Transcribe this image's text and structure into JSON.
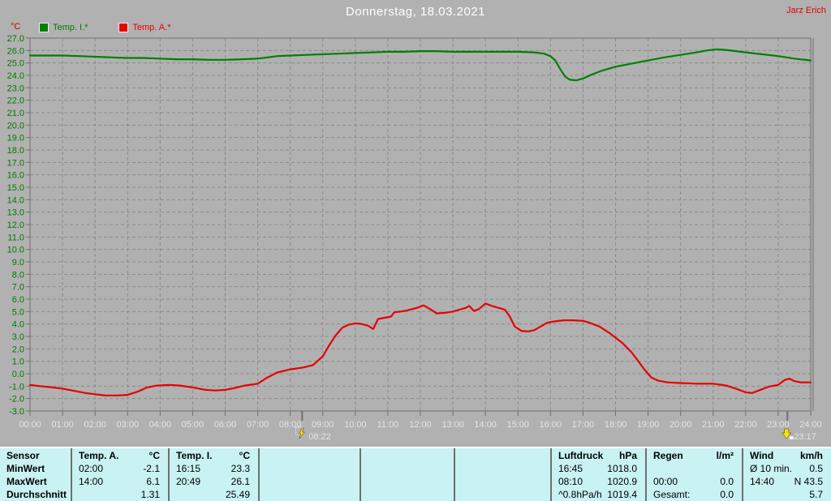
{
  "header": {
    "title": "Donnerstag, 18.03.2021",
    "author": "Jarz Erich"
  },
  "colors": {
    "background": "#b1b1b1",
    "plot_border": "#6f6f6f",
    "grid": "#8b8b8b",
    "y_label": "#007a00",
    "x_label": "#e4e4e4",
    "title": "#ffffff",
    "author": "#e60000",
    "unit": "#cc0000",
    "table_bg": "#c9f2f2",
    "marker_yellow": "#ffe000",
    "temp_i_green": "#008000",
    "temp_a_red": "#e60000"
  },
  "chart_data": {
    "type": "line",
    "title": "Donnerstag, 18.03.2021",
    "xlabel": "",
    "ylabel": "°C",
    "ylim": [
      -3,
      27
    ],
    "ytick_step": 1,
    "xlim": [
      0,
      24
    ],
    "grid": true,
    "legend_position": "top-left",
    "xtick_labels": [
      "00:00",
      "01:00",
      "02:00",
      "03:00",
      "04:00",
      "05:00",
      "06:00",
      "07:00",
      "08:00",
      "09:00",
      "10:00",
      "11:00",
      "12:00",
      "13:00",
      "14:00",
      "15:00",
      "16:00",
      "17:00",
      "18:00",
      "19:00",
      "20:00",
      "21:00",
      "22:00",
      "23:00",
      "24:00"
    ],
    "series": [
      {
        "name": "Temp. I.*",
        "color": "#008000",
        "points": [
          [
            0,
            25.6
          ],
          [
            1,
            25.6
          ],
          [
            1.5,
            25.55
          ],
          [
            2,
            25.5
          ],
          [
            2.5,
            25.45
          ],
          [
            3,
            25.4
          ],
          [
            3.5,
            25.4
          ],
          [
            4,
            25.35
          ],
          [
            4.5,
            25.3
          ],
          [
            5,
            25.3
          ],
          [
            5.5,
            25.25
          ],
          [
            6,
            25.25
          ],
          [
            6.5,
            25.3
          ],
          [
            7,
            25.35
          ],
          [
            7.3,
            25.45
          ],
          [
            7.6,
            25.55
          ],
          [
            8,
            25.6
          ],
          [
            8.5,
            25.65
          ],
          [
            9,
            25.7
          ],
          [
            9.5,
            25.75
          ],
          [
            10,
            25.8
          ],
          [
            10.5,
            25.85
          ],
          [
            11,
            25.9
          ],
          [
            11.5,
            25.9
          ],
          [
            12,
            25.95
          ],
          [
            12.5,
            25.95
          ],
          [
            13,
            25.9
          ],
          [
            13.5,
            25.9
          ],
          [
            14,
            25.9
          ],
          [
            14.5,
            25.9
          ],
          [
            15,
            25.9
          ],
          [
            15.5,
            25.85
          ],
          [
            15.8,
            25.75
          ],
          [
            16,
            25.55
          ],
          [
            16.15,
            25.2
          ],
          [
            16.3,
            24.5
          ],
          [
            16.45,
            23.9
          ],
          [
            16.6,
            23.65
          ],
          [
            16.8,
            23.6
          ],
          [
            17,
            23.75
          ],
          [
            17.3,
            24.1
          ],
          [
            17.6,
            24.4
          ],
          [
            18,
            24.7
          ],
          [
            18.5,
            24.95
          ],
          [
            19,
            25.2
          ],
          [
            19.5,
            25.45
          ],
          [
            20,
            25.65
          ],
          [
            20.5,
            25.85
          ],
          [
            20.8,
            26.0
          ],
          [
            21.1,
            26.1
          ],
          [
            21.4,
            26.05
          ],
          [
            21.7,
            25.95
          ],
          [
            22,
            25.85
          ],
          [
            22.5,
            25.7
          ],
          [
            23,
            25.55
          ],
          [
            23.5,
            25.35
          ],
          [
            24,
            25.2
          ]
        ]
      },
      {
        "name": "Temp. A.*",
        "color": "#e60000",
        "points": [
          [
            0,
            -0.9
          ],
          [
            0.3,
            -1.0
          ],
          [
            0.7,
            -1.1
          ],
          [
            1,
            -1.2
          ],
          [
            1.3,
            -1.35
          ],
          [
            1.7,
            -1.55
          ],
          [
            2,
            -1.65
          ],
          [
            2.3,
            -1.75
          ],
          [
            2.7,
            -1.75
          ],
          [
            3,
            -1.7
          ],
          [
            3.3,
            -1.45
          ],
          [
            3.6,
            -1.1
          ],
          [
            3.9,
            -0.95
          ],
          [
            4.3,
            -0.9
          ],
          [
            4.6,
            -0.95
          ],
          [
            5,
            -1.1
          ],
          [
            5.4,
            -1.3
          ],
          [
            5.7,
            -1.35
          ],
          [
            6,
            -1.3
          ],
          [
            6.3,
            -1.15
          ],
          [
            6.6,
            -0.95
          ],
          [
            7,
            -0.8
          ],
          [
            7.3,
            -0.3
          ],
          [
            7.6,
            0.1
          ],
          [
            8,
            0.35
          ],
          [
            8.4,
            0.5
          ],
          [
            8.7,
            0.7
          ],
          [
            9,
            1.4
          ],
          [
            9.2,
            2.3
          ],
          [
            9.4,
            3.1
          ],
          [
            9.6,
            3.7
          ],
          [
            9.8,
            3.95
          ],
          [
            10,
            4.05
          ],
          [
            10.2,
            4.0
          ],
          [
            10.4,
            3.85
          ],
          [
            10.55,
            3.6
          ],
          [
            10.7,
            4.4
          ],
          [
            10.9,
            4.5
          ],
          [
            11.1,
            4.6
          ],
          [
            11.2,
            4.95
          ],
          [
            11.4,
            5.0
          ],
          [
            11.6,
            5.1
          ],
          [
            11.9,
            5.3
          ],
          [
            12.1,
            5.5
          ],
          [
            12.3,
            5.2
          ],
          [
            12.5,
            4.85
          ],
          [
            12.75,
            4.9
          ],
          [
            13,
            5.0
          ],
          [
            13.2,
            5.15
          ],
          [
            13.4,
            5.3
          ],
          [
            13.5,
            5.45
          ],
          [
            13.65,
            5.05
          ],
          [
            13.8,
            5.2
          ],
          [
            14,
            5.65
          ],
          [
            14.2,
            5.45
          ],
          [
            14.4,
            5.3
          ],
          [
            14.6,
            5.15
          ],
          [
            14.75,
            4.6
          ],
          [
            14.9,
            3.8
          ],
          [
            15.1,
            3.45
          ],
          [
            15.3,
            3.4
          ],
          [
            15.5,
            3.5
          ],
          [
            15.7,
            3.8
          ],
          [
            15.9,
            4.1
          ],
          [
            16.1,
            4.2
          ],
          [
            16.4,
            4.3
          ],
          [
            16.7,
            4.3
          ],
          [
            17,
            4.25
          ],
          [
            17.2,
            4.1
          ],
          [
            17.5,
            3.8
          ],
          [
            17.8,
            3.3
          ],
          [
            18,
            2.9
          ],
          [
            18.2,
            2.5
          ],
          [
            18.5,
            1.7
          ],
          [
            18.7,
            1.0
          ],
          [
            18.9,
            0.3
          ],
          [
            19.1,
            -0.3
          ],
          [
            19.3,
            -0.55
          ],
          [
            19.6,
            -0.7
          ],
          [
            20,
            -0.75
          ],
          [
            20.5,
            -0.8
          ],
          [
            21,
            -0.8
          ],
          [
            21.4,
            -0.95
          ],
          [
            21.7,
            -1.2
          ],
          [
            22,
            -1.5
          ],
          [
            22.2,
            -1.55
          ],
          [
            22.4,
            -1.35
          ],
          [
            22.7,
            -1.05
          ],
          [
            23,
            -0.9
          ],
          [
            23.2,
            -0.5
          ],
          [
            23.35,
            -0.4
          ],
          [
            23.5,
            -0.6
          ],
          [
            23.7,
            -0.7
          ],
          [
            24,
            -0.7
          ]
        ]
      }
    ],
    "markers": [
      {
        "label": "08:22",
        "hour": 8.3667,
        "direction": "up"
      },
      {
        "label": "23:17",
        "hour": 23.2833,
        "direction": "down"
      }
    ]
  },
  "stats_table": {
    "corner_header": "Sensor",
    "row_labels": [
      "MinWert",
      "MaxWert",
      "Durchschnitt"
    ],
    "columns": [
      {
        "name": "Temp. A.",
        "unit": "°C",
        "rows": [
          [
            "02:00",
            "-2.1"
          ],
          [
            "14:00",
            "6.1"
          ],
          [
            "",
            "1.31"
          ]
        ]
      },
      {
        "name": "Temp. I.",
        "unit": "°C",
        "rows": [
          [
            "16:15",
            "23.3"
          ],
          [
            "20:49",
            "26.1"
          ],
          [
            "",
            "25.49"
          ]
        ]
      },
      {
        "name": "",
        "unit": "",
        "rows": [
          [
            "",
            ""
          ],
          [
            "",
            ""
          ],
          [
            "",
            ""
          ]
        ]
      },
      {
        "name": "",
        "unit": "",
        "rows": [
          [
            "",
            ""
          ],
          [
            "",
            ""
          ],
          [
            "",
            ""
          ]
        ]
      },
      {
        "name": "",
        "unit": "",
        "rows": [
          [
            "",
            ""
          ],
          [
            "",
            ""
          ],
          [
            "",
            ""
          ]
        ]
      },
      {
        "name": "Luftdruck",
        "unit": "hPa",
        "rows": [
          [
            "16:45",
            "1018.0"
          ],
          [
            "08:10",
            "1020.9"
          ],
          [
            "^0.8hPa/h",
            "1019.4"
          ]
        ]
      },
      {
        "name": "Regen",
        "unit": "l/m²",
        "rows": [
          [
            "",
            ""
          ],
          [
            "00:00",
            "0.0"
          ],
          [
            "Gesamt:",
            "0.0"
          ]
        ]
      },
      {
        "name": "Wind",
        "unit": "km/h",
        "rows": [
          [
            "Ø 10 min.",
            "0.5"
          ],
          [
            "14:40",
            "N 43.5"
          ],
          [
            "",
            "5.7"
          ]
        ]
      }
    ]
  }
}
